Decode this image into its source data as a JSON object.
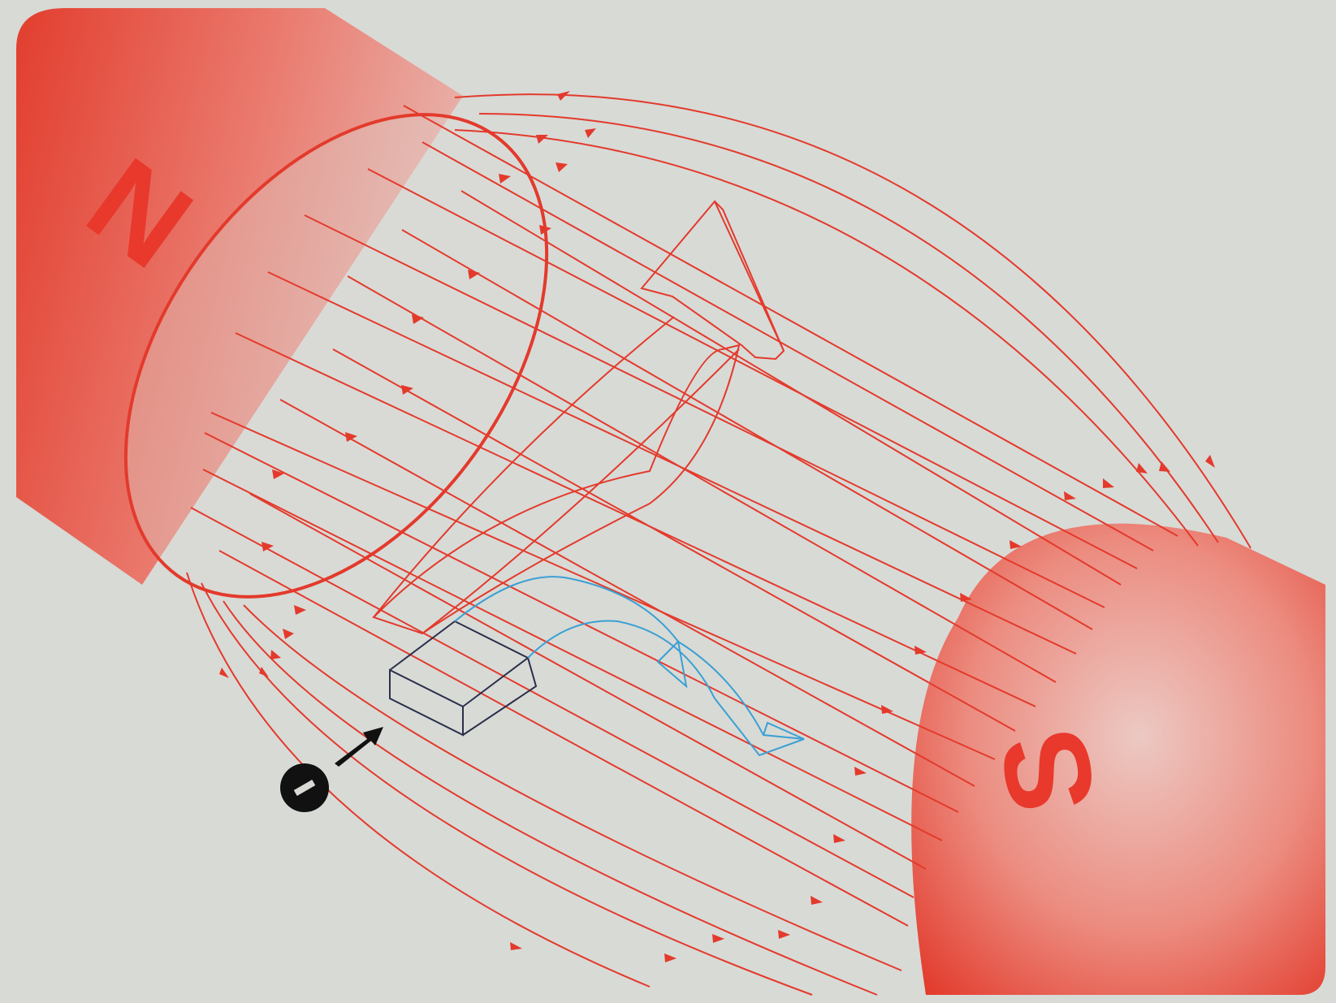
{
  "diagram": {
    "north_pole_label": "N",
    "south_pole_label": "S",
    "colors": {
      "background": "#d8dad6",
      "magnet_red": "#e8392c",
      "field_line": "#e33a2c",
      "force_arrow_outline": "#e33a2c",
      "conductor_outline": "#2a2f4a",
      "current_arrow_outline": "#3aa0d4",
      "electron": "#111111"
    },
    "icons": {
      "electron": "electron-minus-icon",
      "electron_motion": "arrow-right-icon"
    }
  }
}
